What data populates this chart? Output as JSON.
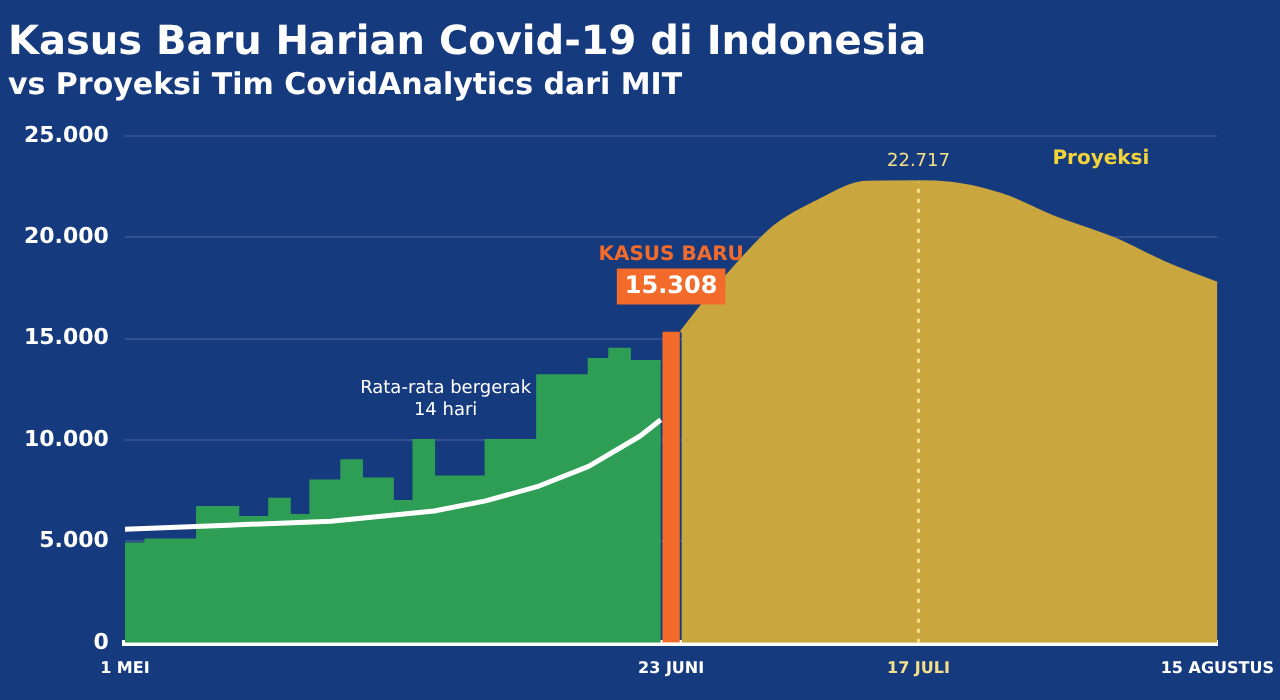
{
  "chart_data": {
    "type": "area",
    "title": "Kasus Baru Harian Covid-19 di Indonesia",
    "subtitle": "vs Proyeksi Tim CovidAnalytics dari MIT",
    "series": [
      {
        "color": "#2e9e55",
        "x": [
          "--05-01",
          "--05-03",
          "--05-03",
          "--05-08",
          "--05-08",
          "--05-12",
          "--05-12",
          "--05-15",
          "--05-15",
          "--05-17",
          "--05-17",
          "--05-19",
          "--05-19",
          "--05-22",
          "--05-22",
          "--05-24",
          "--05-24",
          "--05-27",
          "--05-27",
          "--05-29",
          "--05-29",
          "--05-31",
          "--05-31",
          "--06-05",
          "--06-05",
          "--06-10",
          "--06-10",
          "--06-15",
          "--06-15",
          "--06-17",
          "--06-17",
          "--06-19",
          "--06-19",
          "--06-22"
        ],
        "values": [
          4900,
          4900,
          5100,
          5100,
          6700,
          6700,
          6200,
          6200,
          7100,
          7100,
          6300,
          6300,
          8000,
          8000,
          9000,
          9000,
          8100,
          8100,
          7000,
          7000,
          10000,
          10000,
          8200,
          8200,
          10000,
          10000,
          13200,
          13200,
          14000,
          14000,
          14500,
          14500,
          13900,
          13900
        ]
      },
      {
        "type": "line",
        "name": "Rata-rata bergerak 14 hari",
        "color": "#ffffff",
        "x": [
          "--05-01",
          "--05-11",
          "--05-21",
          "--05-31",
          "--06-05",
          "--06-10",
          "--06-15",
          "--06-20",
          "--06-22"
        ],
        "values": [
          5600,
          5800,
          6000,
          6500,
          7000,
          7700,
          8700,
          10200,
          11000
        ]
      },
      {
        "type": "bar",
        "name": "KASUS BARU",
        "color": "#f26b2a",
        "x": [
          "--06-23"
        ],
        "values": [
          15308
        ],
        "value_labels": [
          "15.308"
        ]
      },
      {
        "name": "Proyeksi",
        "color": "#c9a63e",
        "x": [
          "--06-24",
          "--06-26",
          "--06-29",
          "--07-03",
          "--07-07",
          "--07-12",
          "--07-17",
          "--07-19",
          "--07-25",
          "--07-30",
          "--08-05",
          "--08-10",
          "--08-15"
        ],
        "values": [
          15300,
          16600,
          18400,
          20500,
          21700,
          22700,
          22717,
          22700,
          22100,
          21000,
          19900,
          18700,
          17700
        ],
        "value_labels": [
          null,
          null,
          null,
          null,
          null,
          null,
          "22.717",
          null,
          null,
          null,
          null,
          null,
          null
        ]
      }
    ],
    "xlim": [
      "--05-01",
      "--08-15"
    ],
    "xticks": [
      {
        "value": "--05-01",
        "label": "1 MEI"
      },
      {
        "value": "--06-23",
        "label": "23 JUNI"
      },
      {
        "value": "--07-17",
        "label": "17 JULI"
      },
      {
        "value": "--08-15",
        "label": "15 AGUSTUS"
      }
    ],
    "ylim": [
      0,
      25000
    ],
    "yticks": [
      {
        "value": 0,
        "label": "0"
      },
      {
        "value": 5000,
        "label": "5.000"
      },
      {
        "value": 10000,
        "label": "10.000"
      },
      {
        "value": 15000,
        "label": "15.000"
      },
      {
        "value": 20000,
        "label": "20.000"
      },
      {
        "value": 25000,
        "label": "25.000"
      }
    ],
    "ref_lines": [
      {
        "axis": "x",
        "value": "--07-17",
        "color": "#f5e08a",
        "line_style": "dotted"
      }
    ],
    "grid": "y",
    "legend": false,
    "marker": "none"
  }
}
